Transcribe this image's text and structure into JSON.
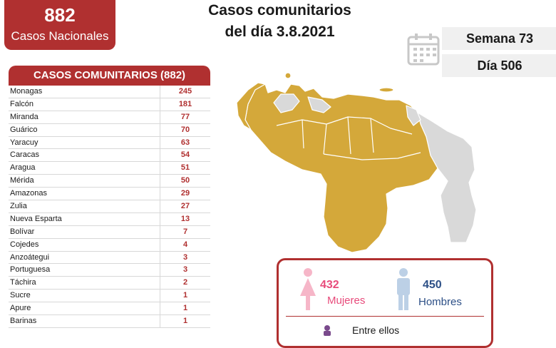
{
  "national": {
    "count": "882",
    "label": "Casos Nacionales"
  },
  "header": {
    "line1": "Casos comunitarios",
    "line2": "del día 3.8.2021"
  },
  "info": {
    "week": "Semana 73",
    "day": "Día 506"
  },
  "table": {
    "title": "CASOS COMUNITARIOS (882)",
    "rows": [
      {
        "state": "Monagas",
        "value": "245"
      },
      {
        "state": "Falcón",
        "value": "181"
      },
      {
        "state": "Miranda",
        "value": "77"
      },
      {
        "state": "Guárico",
        "value": "70"
      },
      {
        "state": "Yaracuy",
        "value": "63"
      },
      {
        "state": "Caracas",
        "value": "54"
      },
      {
        "state": "Aragua",
        "value": "51"
      },
      {
        "state": "Mérida",
        "value": "50"
      },
      {
        "state": "Amazonas",
        "value": "29"
      },
      {
        "state": "Zulia",
        "value": "27"
      },
      {
        "state": "Nueva Esparta",
        "value": "13"
      },
      {
        "state": "Bolívar",
        "value": "7"
      },
      {
        "state": "Cojedes",
        "value": "4"
      },
      {
        "state": "Anzoátegui",
        "value": "3"
      },
      {
        "state": "Portuguesa",
        "value": "3"
      },
      {
        "state": "Táchira",
        "value": "2"
      },
      {
        "state": "Sucre",
        "value": "1"
      },
      {
        "state": "Apure",
        "value": "1"
      },
      {
        "state": "Barinas",
        "value": "1"
      }
    ]
  },
  "gender": {
    "women": {
      "count": "432",
      "label": "Mujeres"
    },
    "men": {
      "count": "450",
      "label": "Hombres"
    },
    "among": "Entre ellos"
  },
  "colors": {
    "primary_red": "#b03030",
    "map_cases": "#d4a83a",
    "map_no_cases": "#d9d9d9",
    "women_pink": "#e84b7b",
    "men_blue": "#2c4f86"
  },
  "icons": [
    "calendar-icon",
    "woman-icon",
    "man-icon",
    "person-icon"
  ]
}
